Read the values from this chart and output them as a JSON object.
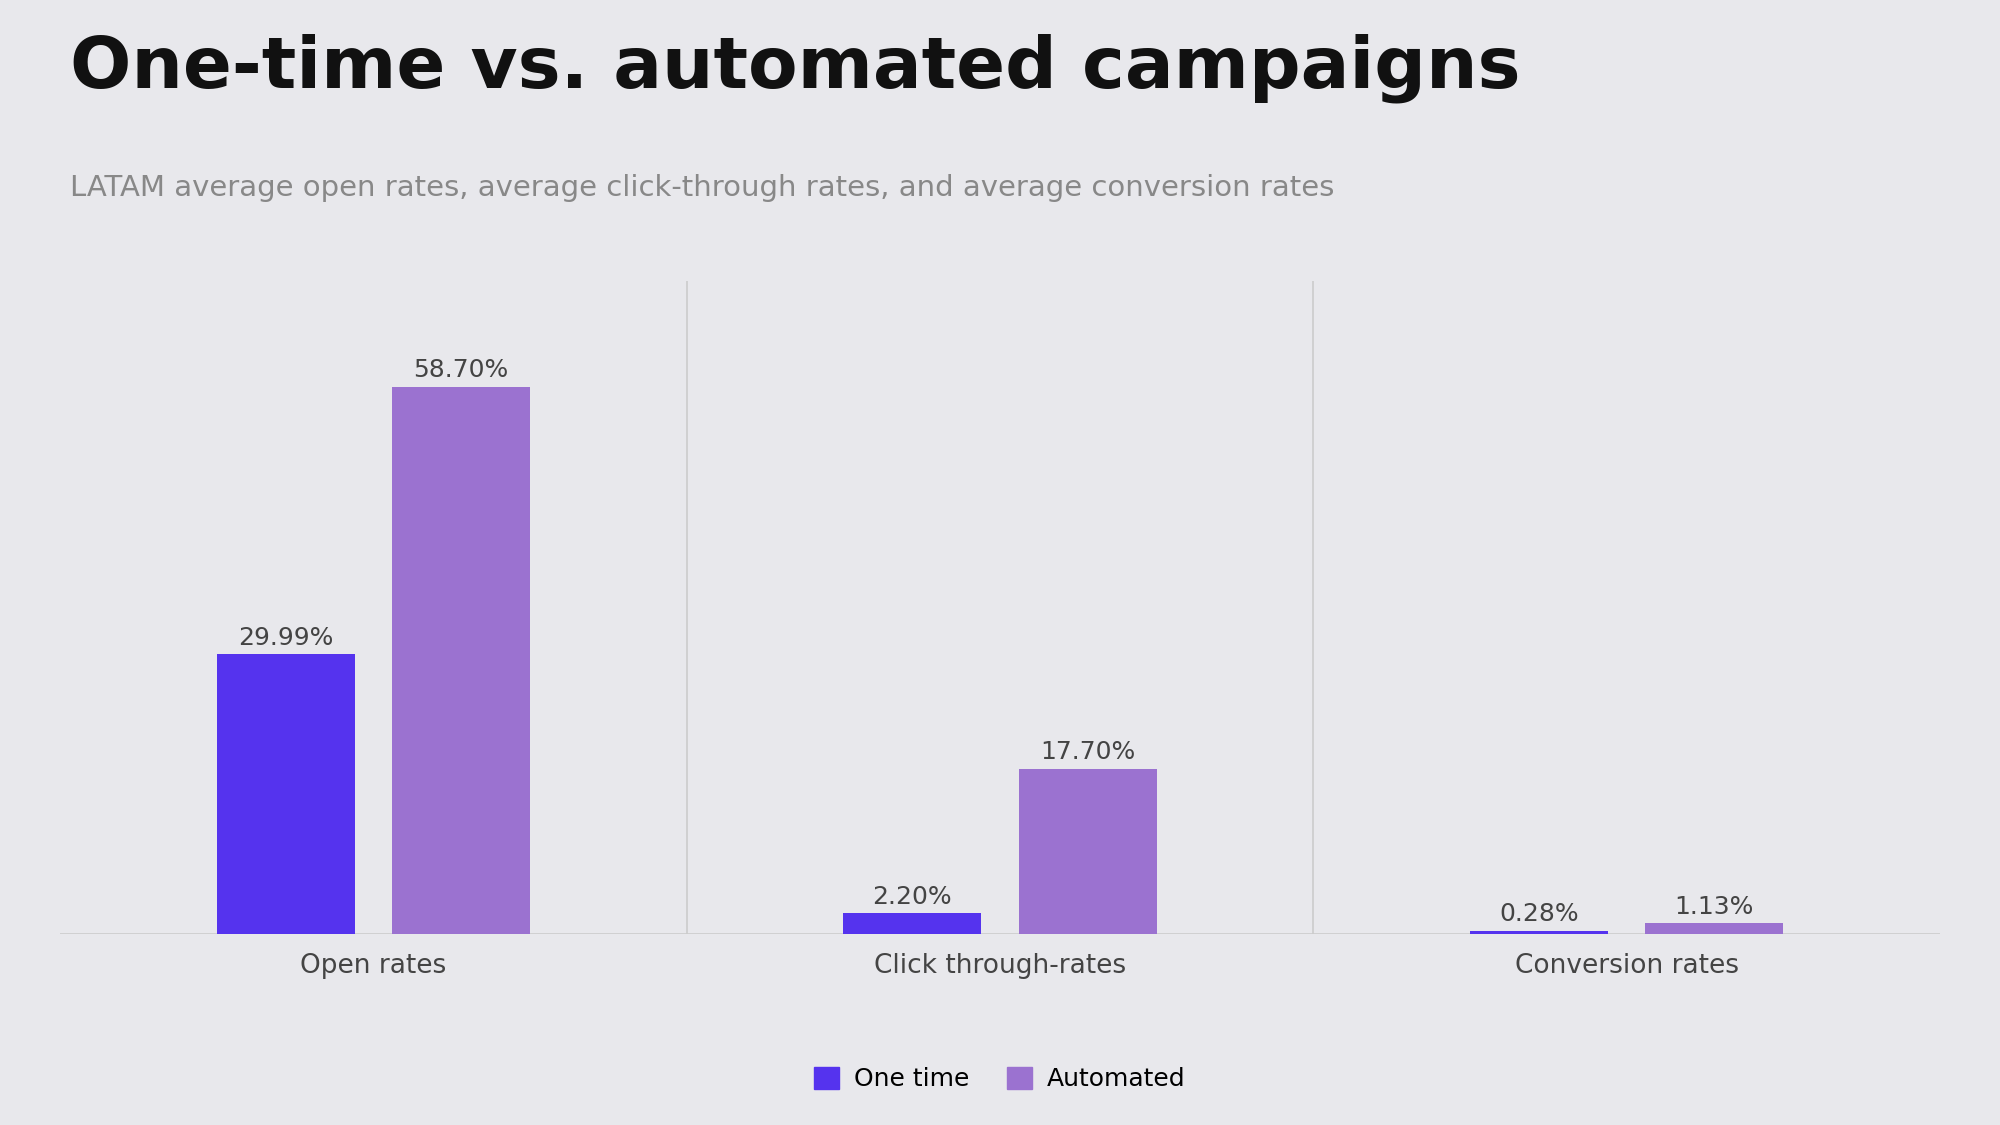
{
  "title": "One-time vs. automated campaigns",
  "subtitle": "LATAM average open rates, average click-through rates, and average conversion rates",
  "categories": [
    "Open rates",
    "Click through-rates",
    "Conversion rates"
  ],
  "one_time_values": [
    29.99,
    2.2,
    0.28
  ],
  "automated_values": [
    58.7,
    17.7,
    1.13
  ],
  "one_time_labels": [
    "29.99%",
    "2.20%",
    "0.28%"
  ],
  "automated_labels": [
    "58.70%",
    "17.70%",
    "1.13%"
  ],
  "color_one_time": "#5533ee",
  "color_automated": "#9b72d0",
  "background_color": "#e8e8ec",
  "chart_bg_color": "#ebebee",
  "title_color": "#111111",
  "subtitle_color": "#888888",
  "label_color": "#444444",
  "category_label_color": "#444444",
  "separator_color": "#cccccc",
  "bar_width": 0.22,
  "legend_labels": [
    "One time",
    "Automated"
  ],
  "title_fontsize": 52,
  "subtitle_fontsize": 21,
  "bar_label_fontsize": 18,
  "category_fontsize": 19,
  "legend_fontsize": 18,
  "ylim_max": 70
}
